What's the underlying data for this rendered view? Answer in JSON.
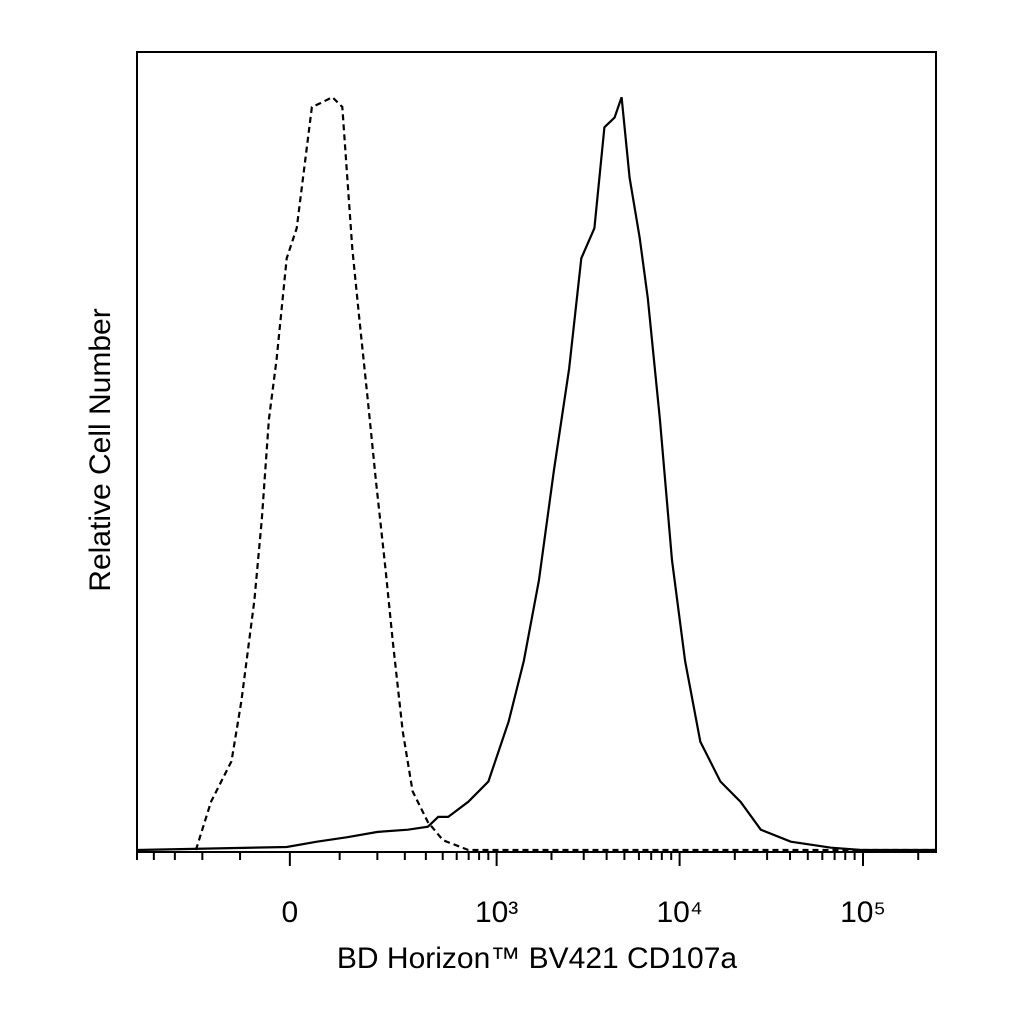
{
  "chart_data": {
    "type": "line",
    "x_label": "BD Horizon™ BV421 CD107a",
    "y_label": "Relative Cell Number",
    "x_scale": "biexponential",
    "xlim": [
      -500,
      250000
    ],
    "ylim": [
      0,
      106
    ],
    "xticks": [
      {
        "value": 0,
        "label": "0"
      },
      {
        "value": 1000,
        "label": "10³"
      },
      {
        "value": 10000,
        "label": "10⁴"
      },
      {
        "value": 100000,
        "label": "10⁵"
      }
    ],
    "xminorticks": [
      -500,
      -400,
      -300,
      -200,
      -100,
      100,
      200,
      300,
      400,
      500,
      600,
      700,
      800,
      900,
      2000,
      3000,
      4000,
      5000,
      6000,
      7000,
      8000,
      9000,
      20000,
      30000,
      40000,
      50000,
      60000,
      70000,
      80000,
      90000,
      200000
    ],
    "series": [
      {
        "color": "#000000",
        "dashed": true,
        "x": [
          -221,
          -174,
          -120,
          -97,
          -69,
          -54,
          -40,
          -25,
          -6,
          13,
          42,
          62,
          84,
          106,
          130,
          148,
          171,
          195,
          227,
          252,
          291,
          334,
          411,
          502,
          697,
          250000
        ],
        "values": [
          0,
          6.4,
          11.8,
          19.8,
          33.2,
          43.9,
          57.2,
          65.2,
          78.6,
          82.6,
          98.7,
          99.3,
          100,
          98.7,
          79.9,
          70.6,
          59.9,
          49.2,
          37.2,
          27.8,
          15.8,
          7.8,
          3.7,
          1.3,
          0,
          0
        ]
      },
      {
        "color": "#000000",
        "dashed": false,
        "x": [
          -500,
          -6,
          52,
          118,
          201,
          313,
          411,
          471,
          537,
          697,
          901,
          1165,
          1411,
          1707,
          2065,
          2497,
          2910,
          3430,
          3890,
          4420,
          4830,
          5340,
          6060,
          6710,
          7810,
          9090,
          10710,
          12960,
          16690,
          21500,
          27700,
          40400,
          67000,
          98000,
          250000
        ],
        "values": [
          0,
          0.4,
          1.1,
          1.7,
          2.4,
          2.7,
          3.1,
          4.4,
          4.4,
          6.4,
          9.1,
          17.1,
          25.1,
          35.8,
          50.5,
          63.9,
          78.6,
          82.6,
          96.0,
          97.3,
          100,
          89.3,
          81.3,
          73.3,
          57.2,
          38.5,
          25.1,
          14.4,
          9.1,
          6.4,
          2.7,
          1.1,
          0.3,
          0,
          0
        ]
      }
    ]
  }
}
